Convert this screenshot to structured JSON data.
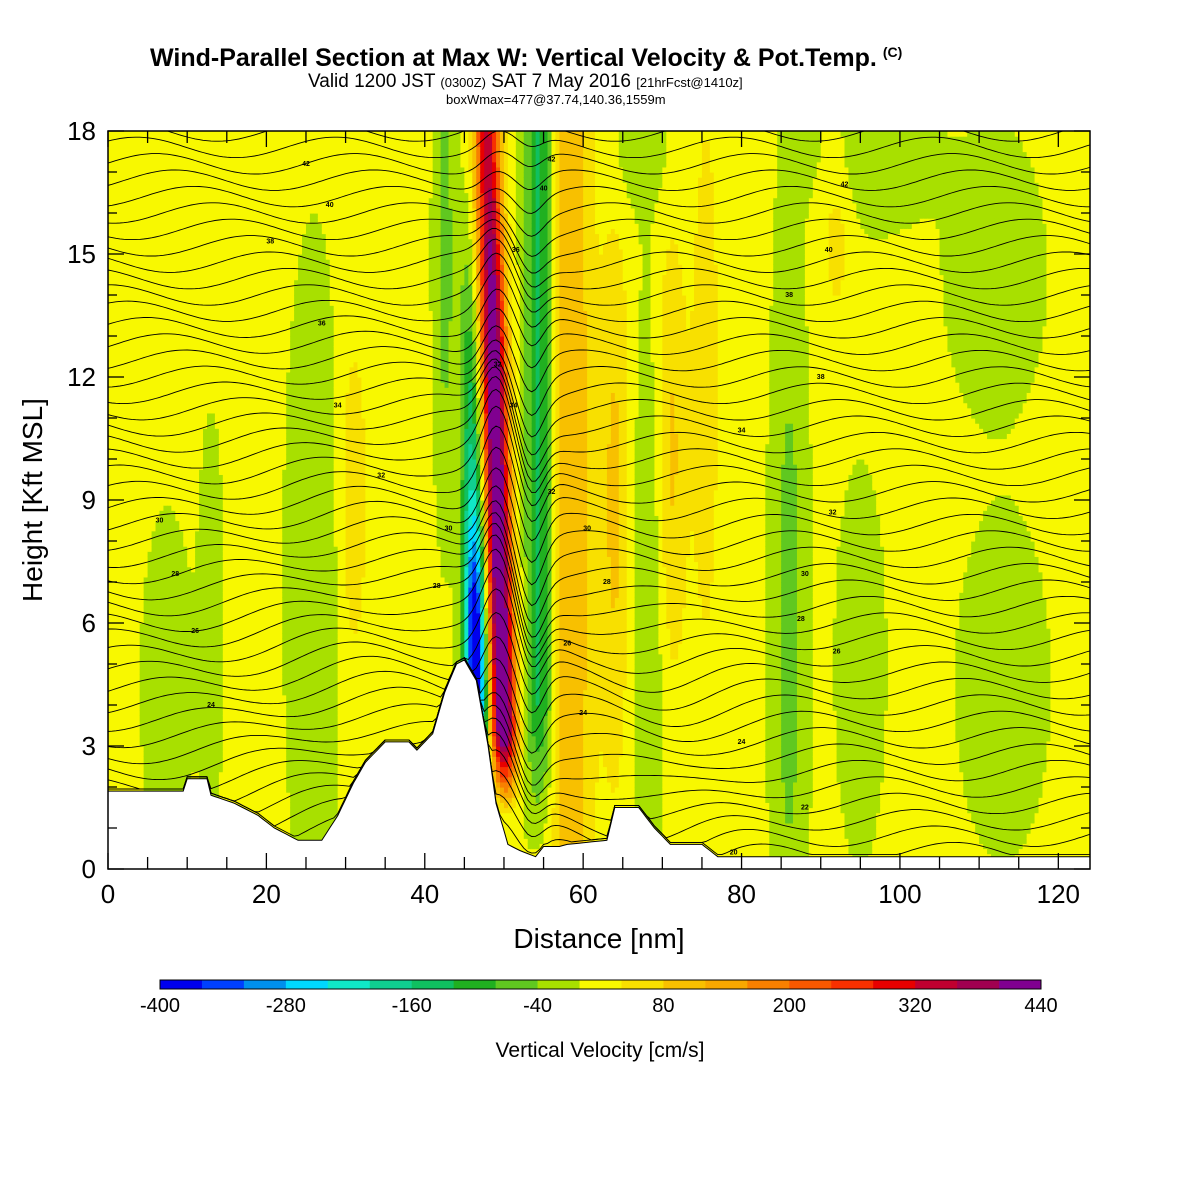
{
  "header": {
    "title": "Wind-Parallel Section at Max W: Vertical Velocity & Pot.Temp.",
    "copyright": "(C)",
    "valid_prefix": "Valid 1200 JST",
    "valid_zulu": "(0300Z)",
    "valid_date": "SAT 7 May 2016",
    "forecast": "[21hrFcst@1410z]",
    "box_info": "boxWmax=477@37.74,140.36,1559m"
  },
  "chart_data": {
    "type": "heatmap",
    "xlabel": "Distance [nm]",
    "ylabel": "Height [Kft MSL]",
    "xlim": [
      0,
      124
    ],
    "ylim": [
      0,
      18
    ],
    "x_ticks": [
      "0",
      "20",
      "40",
      "60",
      "80",
      "100",
      "120"
    ],
    "y_ticks": [
      "0",
      "3",
      "6",
      "9",
      "12",
      "15",
      "18"
    ],
    "colorbar": {
      "label": "Vertical Velocity [cm/s]",
      "tick_labels": [
        "-400",
        "-280",
        "-160",
        "-40",
        "80",
        "200",
        "320",
        "440"
      ],
      "levels": [
        -400,
        -360,
        -320,
        -280,
        -240,
        -200,
        -160,
        -120,
        -80,
        -40,
        0,
        40,
        80,
        120,
        160,
        200,
        240,
        280,
        320,
        360,
        400,
        440
      ],
      "colors": [
        "#0000ee",
        "#0040ff",
        "#0090ee",
        "#00d8ff",
        "#10e8c8",
        "#10d090",
        "#10c060",
        "#20b020",
        "#60c820",
        "#a8e000",
        "#f8f800",
        "#f8e000",
        "#f8c000",
        "#f8a800",
        "#f88000",
        "#f85800",
        "#f83000",
        "#e80000",
        "#c00030",
        "#a00050",
        "#800090"
      ]
    },
    "features": {
      "downdraft_core": {
        "min_w_cm_s": -400,
        "distance_nm": [
          44,
          48
        ],
        "height_kft": [
          2.5,
          7
        ]
      },
      "updraft_core": {
        "max_w_cm_s": 477,
        "distance_nm": [
          48,
          53
        ],
        "height_kft": [
          1.5,
          18
        ]
      },
      "terrain_peak": {
        "distance_nm": 45,
        "height_kft": 5.1
      }
    },
    "isentrope_labels": [
      {
        "label": "24",
        "x": 13,
        "y": 4.0
      },
      {
        "label": "26",
        "x": 11,
        "y": 5.8
      },
      {
        "label": "28",
        "x": 8.5,
        "y": 7.2
      },
      {
        "label": "30",
        "x": 6.5,
        "y": 8.5
      },
      {
        "label": "32",
        "x": 34.5,
        "y": 9.6
      },
      {
        "label": "34",
        "x": 29,
        "y": 11.3
      },
      {
        "label": "36",
        "x": 27,
        "y": 13.3
      },
      {
        "label": "38",
        "x": 20.5,
        "y": 15.3
      },
      {
        "label": "40",
        "x": 28,
        "y": 16.2
      },
      {
        "label": "42",
        "x": 25,
        "y": 17.2
      },
      {
        "label": "28",
        "x": 41.5,
        "y": 6.9
      },
      {
        "label": "30",
        "x": 43,
        "y": 8.3
      },
      {
        "label": "32",
        "x": 49.2,
        "y": 12.3
      },
      {
        "label": "34",
        "x": 51.2,
        "y": 11.3
      },
      {
        "label": "36",
        "x": 51.5,
        "y": 15.1
      },
      {
        "label": "40",
        "x": 55,
        "y": 16.6
      },
      {
        "label": "42",
        "x": 56,
        "y": 17.3
      },
      {
        "label": "26",
        "x": 58,
        "y": 5.5
      },
      {
        "label": "24",
        "x": 60,
        "y": 3.8
      },
      {
        "label": "28",
        "x": 63,
        "y": 7.0
      },
      {
        "label": "30",
        "x": 60.5,
        "y": 8.3
      },
      {
        "label": "32",
        "x": 56,
        "y": 9.2
      },
      {
        "label": "20",
        "x": 79,
        "y": 0.4
      },
      {
        "label": "22",
        "x": 88,
        "y": 1.5
      },
      {
        "label": "24",
        "x": 80,
        "y": 3.1
      },
      {
        "label": "26",
        "x": 92,
        "y": 5.3
      },
      {
        "label": "28",
        "x": 87.5,
        "y": 6.1
      },
      {
        "label": "30",
        "x": 88,
        "y": 7.2
      },
      {
        "label": "32",
        "x": 91.5,
        "y": 8.7
      },
      {
        "label": "34",
        "x": 80,
        "y": 10.7
      },
      {
        "label": "38",
        "x": 90,
        "y": 12.0
      },
      {
        "label": "38",
        "x": 86,
        "y": 14.0
      },
      {
        "label": "40",
        "x": 91,
        "y": 15.1
      },
      {
        "label": "42",
        "x": 93,
        "y": 16.7
      }
    ]
  }
}
